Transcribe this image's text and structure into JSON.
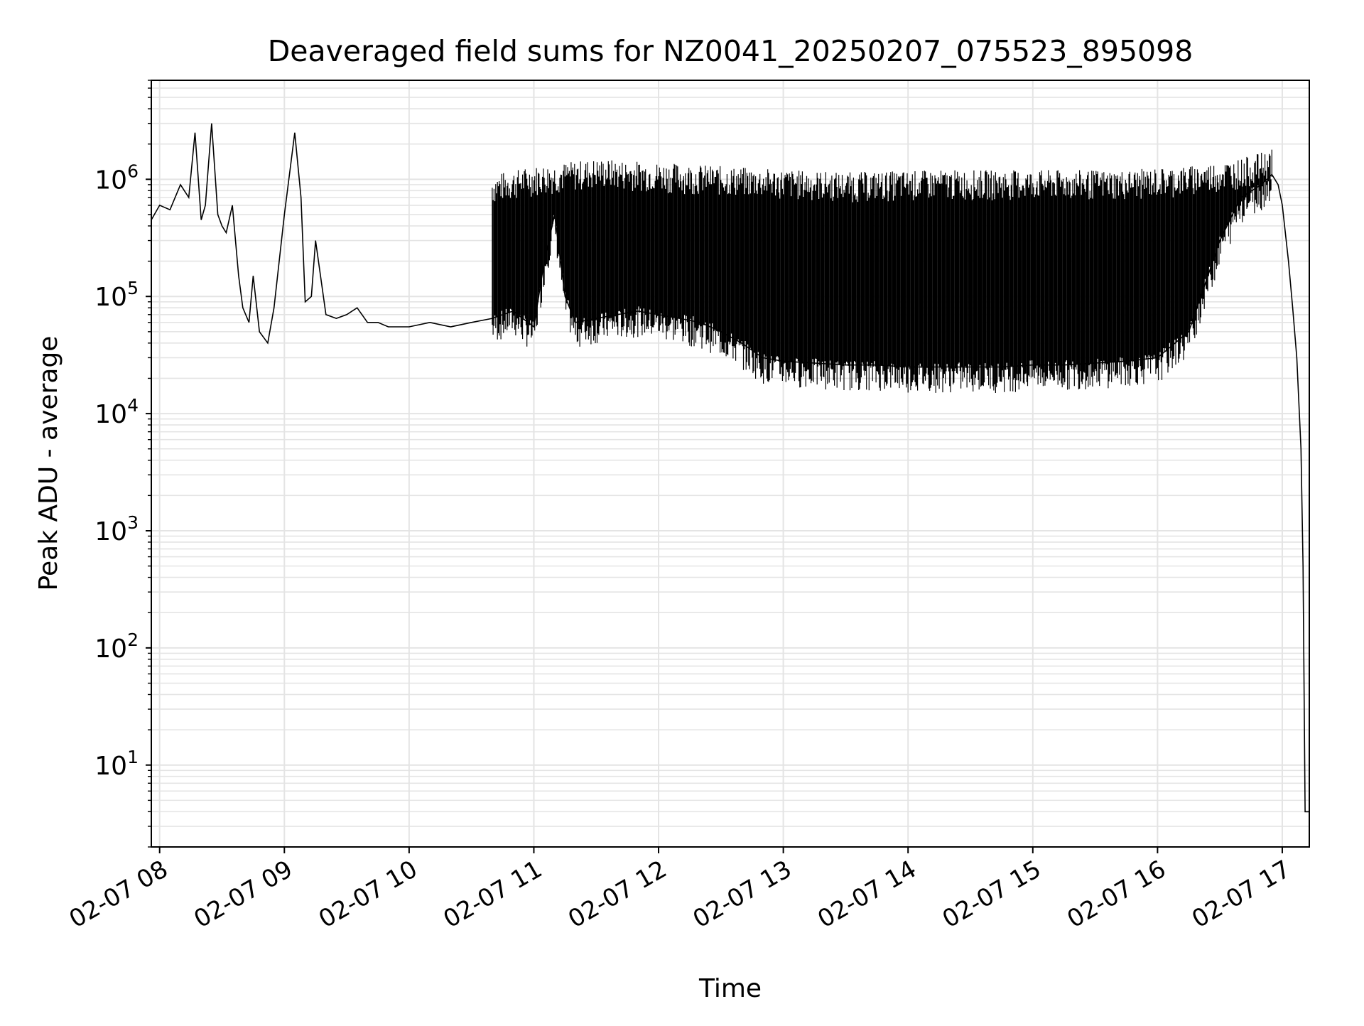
{
  "chart_data": {
    "type": "line",
    "title": "Deaveraged field sums for NZ0041_20250207_075523_895098",
    "xlabel": "Time",
    "ylabel": "Peak ADU - average",
    "yscale": "log",
    "ylim": [
      2,
      7000000
    ],
    "xlim": [
      "2025-02-07T07:56",
      "2025-02-07T17:13"
    ],
    "grid": "on (major and minor)",
    "line_color": "#000000",
    "x_ticks": [
      {
        "t": "2025-02-07T08:00",
        "label": "02-07 08"
      },
      {
        "t": "2025-02-07T09:00",
        "label": "02-07 09"
      },
      {
        "t": "2025-02-07T10:00",
        "label": "02-07 10"
      },
      {
        "t": "2025-02-07T11:00",
        "label": "02-07 11"
      },
      {
        "t": "2025-02-07T12:00",
        "label": "02-07 12"
      },
      {
        "t": "2025-02-07T13:00",
        "label": "02-07 13"
      },
      {
        "t": "2025-02-07T14:00",
        "label": "02-07 14"
      },
      {
        "t": "2025-02-07T15:00",
        "label": "02-07 15"
      },
      {
        "t": "2025-02-07T16:00",
        "label": "02-07 16"
      },
      {
        "t": "2025-02-07T17:00",
        "label": "02-07 17"
      }
    ],
    "y_ticks": [
      {
        "value": 10,
        "base": "10",
        "exp": "1"
      },
      {
        "value": 100,
        "base": "10",
        "exp": "2"
      },
      {
        "value": 1000,
        "base": "10",
        "exp": "3"
      },
      {
        "value": 10000,
        "base": "10",
        "exp": "4"
      },
      {
        "value": 100000,
        "base": "10",
        "exp": "5"
      },
      {
        "value": 1000000,
        "base": "10",
        "exp": "6"
      }
    ],
    "series": [
      {
        "x": [
          "2025-02-07T07:56",
          "2025-02-07T08:00",
          "2025-02-07T08:05",
          "2025-02-07T08:10",
          "2025-02-07T08:14",
          "2025-02-07T08:17",
          "2025-02-07T08:20",
          "2025-02-07T08:22",
          "2025-02-07T08:25",
          "2025-02-07T08:28",
          "2025-02-07T08:30",
          "2025-02-07T08:32",
          "2025-02-07T08:35",
          "2025-02-07T08:38",
          "2025-02-07T08:40",
          "2025-02-07T08:43",
          "2025-02-07T08:45",
          "2025-02-07T08:48",
          "2025-02-07T08:52",
          "2025-02-07T08:55",
          "2025-02-07T09:00",
          "2025-02-07T09:05",
          "2025-02-07T09:08",
          "2025-02-07T09:10",
          "2025-02-07T09:13",
          "2025-02-07T09:15",
          "2025-02-07T09:20",
          "2025-02-07T09:25",
          "2025-02-07T09:30",
          "2025-02-07T09:35",
          "2025-02-07T09:40",
          "2025-02-07T09:45",
          "2025-02-07T09:50",
          "2025-02-07T10:00",
          "2025-02-07T10:10",
          "2025-02-07T10:20",
          "2025-02-07T10:30",
          "2025-02-07T10:40",
          "2025-02-07T10:50",
          "2025-02-07T11:00",
          "2025-02-07T11:05",
          "2025-02-07T11:10",
          "2025-02-07T11:15",
          "2025-02-07T11:20",
          "2025-02-07T11:30",
          "2025-02-07T11:40",
          "2025-02-07T11:50",
          "2025-02-07T12:00",
          "2025-02-07T12:10",
          "2025-02-07T12:20",
          "2025-02-07T12:30",
          "2025-02-07T12:40",
          "2025-02-07T12:50",
          "2025-02-07T13:00",
          "2025-02-07T13:15",
          "2025-02-07T13:30",
          "2025-02-07T13:45",
          "2025-02-07T14:00",
          "2025-02-07T14:15",
          "2025-02-07T14:30",
          "2025-02-07T14:45",
          "2025-02-07T15:00",
          "2025-02-07T15:15",
          "2025-02-07T15:30",
          "2025-02-07T15:45",
          "2025-02-07T16:00",
          "2025-02-07T16:15",
          "2025-02-07T16:30",
          "2025-02-07T16:40",
          "2025-02-07T16:50",
          "2025-02-07T16:55",
          "2025-02-07T16:58",
          "2025-02-07T17:00",
          "2025-02-07T17:03",
          "2025-02-07T17:05",
          "2025-02-07T17:07",
          "2025-02-07T17:09",
          "2025-02-07T17:10",
          "2025-02-07T17:11",
          "2025-02-07T17:13"
        ],
        "y": [
          450000,
          600000,
          550000,
          900000,
          700000,
          2500000,
          450000,
          600000,
          3000000,
          500000,
          400000,
          350000,
          600000,
          150000,
          80000,
          60000,
          150000,
          50000,
          40000,
          80000,
          500000,
          2500000,
          700000,
          90000,
          100000,
          300000,
          70000,
          65000,
          70000,
          80000,
          60000,
          60000,
          55000,
          55000,
          60000,
          55000,
          60000,
          65000,
          75000,
          55000,
          200000,
          500000,
          100000,
          60000,
          65000,
          70000,
          75000,
          70000,
          65000,
          60000,
          50000,
          40000,
          30000,
          28000,
          27000,
          26000,
          26000,
          25000,
          25000,
          25000,
          25000,
          26000,
          26000,
          27000,
          28000,
          30000,
          50000,
          300000,
          700000,
          900000,
          1100000,
          900000,
          600000,
          200000,
          80000,
          30000,
          5000,
          500,
          4,
          4
        ]
      }
    ],
    "envelope": {
      "description_only": false,
      "upper_x": [
        "2025-02-07T10:40",
        "2025-02-07T11:00",
        "2025-02-07T11:30",
        "2025-02-07T12:00",
        "2025-02-07T12:45",
        "2025-02-07T13:30",
        "2025-02-07T14:15",
        "2025-02-07T15:00",
        "2025-02-07T15:45",
        "2025-02-07T16:15",
        "2025-02-07T16:40",
        "2025-02-07T16:55"
      ],
      "upper_y": [
        1100000,
        1300000,
        1500000,
        1400000,
        1250000,
        1150000,
        1200000,
        1200000,
        1200000,
        1300000,
        1500000,
        1800000
      ]
    }
  }
}
